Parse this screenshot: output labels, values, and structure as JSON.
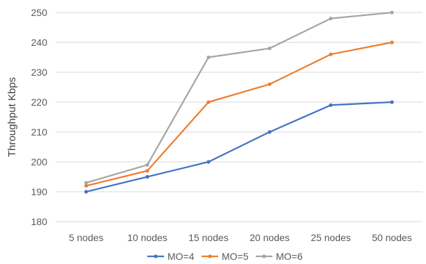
{
  "chart_data": {
    "type": "line",
    "categories": [
      "5 nodes",
      "10 nodes",
      "15 nodes",
      "20 nodes",
      "25 nodes",
      "50 nodes"
    ],
    "series": [
      {
        "name": "MO=4",
        "color": "#4472C4",
        "values": [
          190,
          195,
          200,
          210,
          219,
          220
        ]
      },
      {
        "name": "MO=5",
        "color": "#ED7D31",
        "values": [
          192,
          197,
          220,
          226,
          236,
          240
        ]
      },
      {
        "name": "MO=6",
        "color": "#A5A5A5",
        "values": [
          193,
          199,
          235,
          238,
          248,
          250
        ]
      }
    ],
    "ylabel": "Throughput Kbps",
    "xlabel": "",
    "ylim": [
      180,
      250
    ],
    "yticks": [
      180,
      190,
      200,
      210,
      220,
      230,
      240,
      250
    ],
    "grid": true,
    "legend_position": "bottom",
    "gridline_color": "#D9D9D9"
  }
}
